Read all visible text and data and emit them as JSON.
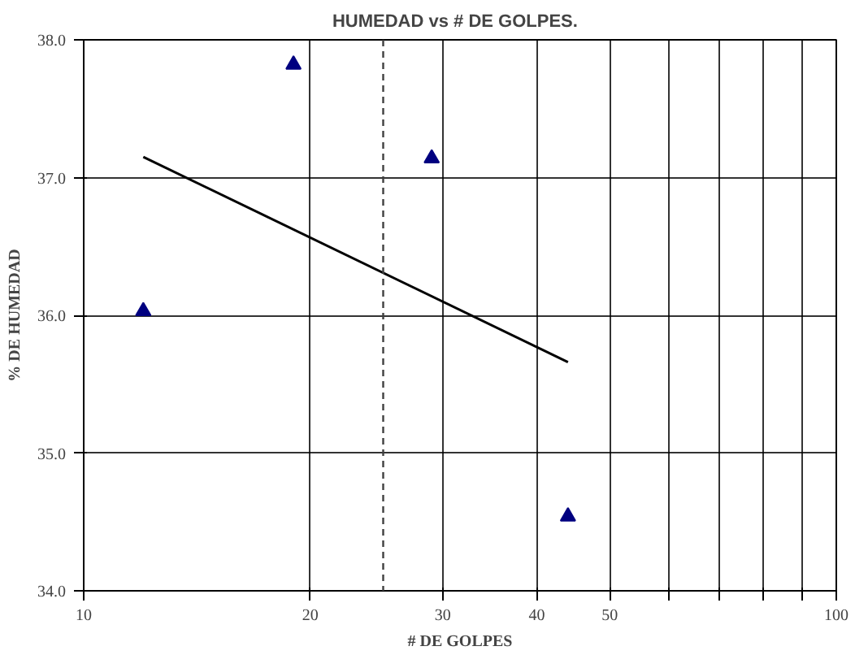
{
  "chart_data": {
    "type": "scatter",
    "title": "HUMEDAD  vs  # DE GOLPES.",
    "xlabel": "# DE GOLPES",
    "ylabel": "% DE HUMEDAD",
    "log": "x",
    "grid": true,
    "marker": "triangle",
    "xlim": [
      10,
      100
    ],
    "ylim": [
      34,
      38
    ],
    "xticks": [
      10,
      20,
      30,
      40,
      50,
      {
        "value": 60,
        "label": null
      },
      {
        "value": 70,
        "label": null
      },
      {
        "value": 80,
        "label": null
      },
      {
        "value": 90,
        "label": null
      },
      100
    ],
    "yticks": [
      {
        "value": 34,
        "label": "34.0"
      },
      {
        "value": 35,
        "label": "35.0"
      },
      {
        "value": 36,
        "label": "36.0"
      },
      {
        "value": 37,
        "label": "37.0"
      },
      {
        "value": 38,
        "label": "38.0"
      }
    ],
    "series": [
      {
        "color": "#000080",
        "x": [
          12,
          19,
          29,
          44
        ],
        "values": [
          36.03,
          37.82,
          37.14,
          34.54
        ]
      },
      {
        "type": "line",
        "color": "#000000",
        "marker": "none",
        "x": [
          12,
          44
        ],
        "values": [
          37.15,
          35.66
        ]
      }
    ],
    "ref_lines": [
      {
        "axis": "x",
        "value": 25,
        "label": null,
        "color": "#404040",
        "line_style": "dashed"
      }
    ]
  }
}
